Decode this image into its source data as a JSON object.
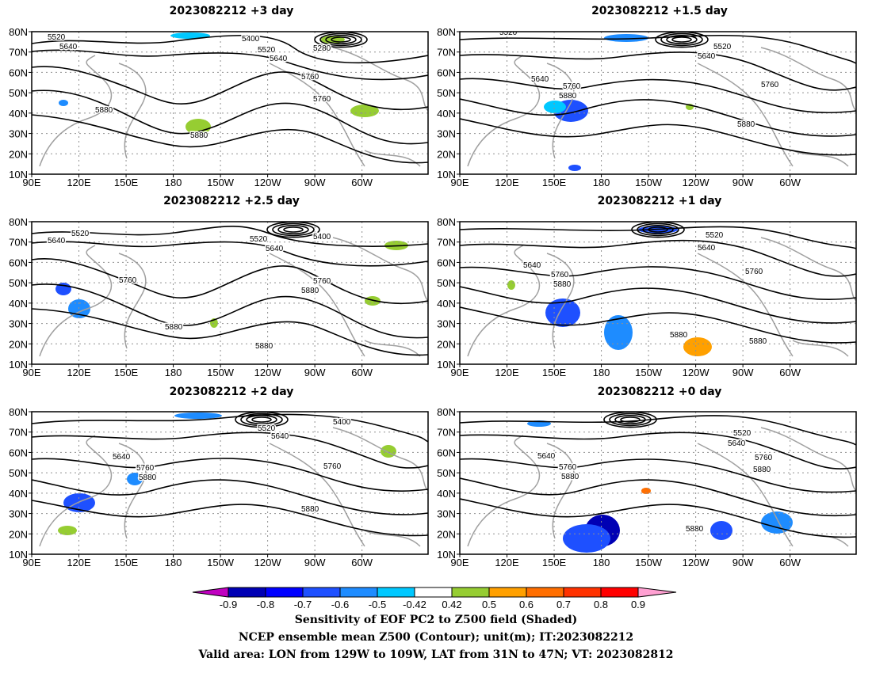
{
  "panels": [
    {
      "title": "2023082212 +3 day",
      "contour_labels": [
        "5520",
        "5640",
        "5400",
        "5520",
        "5640",
        "5280",
        "5760",
        "5880",
        "5760",
        "5880"
      ]
    },
    {
      "title": "2023082212 +1.5 day",
      "contour_labels": [
        "5520",
        "5520",
        "5640",
        "5640",
        "5760",
        "5880",
        "5760",
        "5880"
      ]
    },
    {
      "title": "2023082212 +2.5 day",
      "contour_labels": [
        "5520",
        "5640",
        "5520",
        "5400",
        "5640",
        "5760",
        "5760",
        "5880",
        "5880",
        "5880"
      ]
    },
    {
      "title": "2023082212 +1 day",
      "contour_labels": [
        "5520",
        "5640",
        "5640",
        "5760",
        "5880",
        "5760",
        "5880",
        "5880"
      ]
    },
    {
      "title": "2023082212 +2 day",
      "contour_labels": [
        "5520",
        "5640",
        "5400",
        "5640",
        "5760",
        "5880",
        "5760",
        "5880"
      ]
    },
    {
      "title": "2023082212 +0 day",
      "contour_labels": [
        "5520",
        "5640",
        "5640",
        "5760",
        "5760",
        "5880",
        "5880",
        "5880"
      ]
    }
  ],
  "lat_labels": [
    "80N",
    "70N",
    "60N",
    "50N",
    "40N",
    "30N",
    "20N",
    "10N"
  ],
  "lon_labels": [
    "90E",
    "120E",
    "150E",
    "180",
    "150W",
    "120W",
    "90W",
    "60W"
  ],
  "colorbar": {
    "ticks": [
      "-0.9",
      "-0.8",
      "-0.7",
      "-0.6",
      "-0.5",
      "-0.42",
      "0.42",
      "0.5",
      "0.6",
      "0.7",
      "0.8",
      "0.9"
    ],
    "colors": [
      "#c000c0",
      "#0000b4",
      "#0000ff",
      "#1e50ff",
      "#1e8cff",
      "#00c8ff",
      "#ffffff",
      "#96cd32",
      "#ffa000",
      "#ff6e00",
      "#ff3200",
      "#ff0000",
      "#ffa0d2"
    ]
  },
  "footer": {
    "line1": "Sensitivity of EOF PC2 to Z500 field (Shaded)",
    "line2": "NCEP ensemble mean Z500 (Contour); unit(m); IT:2023082212",
    "line3": "Valid area: LON from 129W to 109W, LAT from 31N to 47N; VT: 2023082812"
  }
}
